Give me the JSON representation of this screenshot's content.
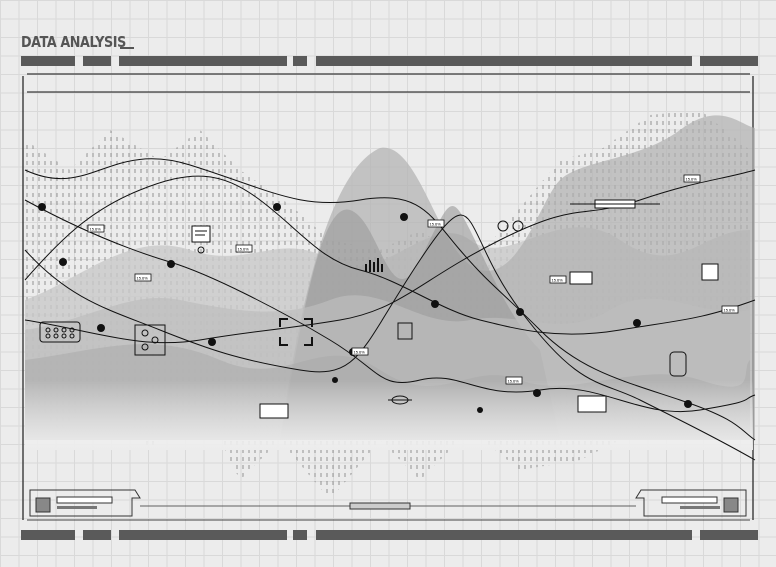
{
  "header": {
    "title": "DATA ANALYSIS"
  },
  "value_labels": [
    "15.6%",
    "15.6%",
    "15.6%",
    "15.6%",
    "15.6%",
    "15.6%",
    "15.6%",
    "15.6%",
    "15.6%",
    "15.6%",
    "15.6%"
  ],
  "colors": {
    "bars": "#5a5a5a",
    "lines": "#111111",
    "background": "#ececec"
  }
}
